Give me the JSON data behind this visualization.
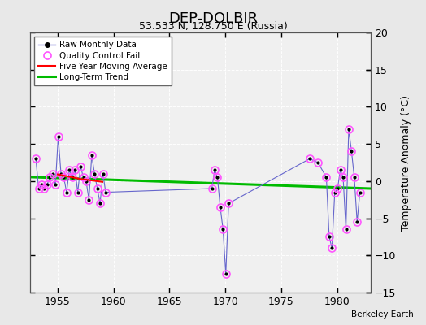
{
  "title": "DEP-DOLBIR",
  "subtitle": "53.533 N, 128.750 E (Russia)",
  "ylabel": "Temperature Anomaly (°C)",
  "credit": "Berkeley Earth",
  "xlim": [
    1952.5,
    1983.0
  ],
  "ylim": [
    -15,
    20
  ],
  "yticks": [
    -15,
    -10,
    -5,
    0,
    5,
    10,
    15,
    20
  ],
  "xticks": [
    1955,
    1960,
    1965,
    1970,
    1975,
    1980
  ],
  "fig_bg_color": "#e8e8e8",
  "plot_bg_color": "#f0f0f0",
  "raw_data_x": [
    1953.04,
    1953.29,
    1953.54,
    1953.79,
    1954.04,
    1954.29,
    1954.54,
    1954.79,
    1955.04,
    1955.29,
    1955.54,
    1955.79,
    1956.04,
    1956.29,
    1956.54,
    1956.79,
    1957.04,
    1957.29,
    1957.54,
    1957.79,
    1958.04,
    1958.29,
    1958.54,
    1958.79,
    1959.04,
    1959.29,
    1968.79,
    1969.04,
    1969.29,
    1969.54,
    1969.79,
    1970.04,
    1970.29,
    1977.54,
    1978.29,
    1979.04,
    1979.29,
    1979.54,
    1979.79,
    1980.04,
    1980.29,
    1980.54,
    1980.79,
    1981.04,
    1981.29,
    1981.54,
    1981.79,
    1982.04
  ],
  "raw_data_y": [
    3.0,
    -1.0,
    -0.5,
    -1.0,
    -0.5,
    0.5,
    1.0,
    -0.5,
    6.0,
    1.0,
    0.5,
    -1.5,
    1.5,
    0.5,
    1.5,
    -1.5,
    2.0,
    0.5,
    0.0,
    -2.5,
    3.5,
    1.0,
    -1.0,
    -3.0,
    1.0,
    -1.5,
    -1.0,
    1.5,
    0.5,
    -3.5,
    -6.5,
    -12.5,
    -3.0,
    3.0,
    2.5,
    0.5,
    -7.5,
    -9.0,
    -1.5,
    -1.0,
    1.5,
    0.5,
    -6.5,
    7.0,
    4.0,
    0.5,
    -5.5,
    -1.5
  ],
  "qc_fail_indices": [
    0,
    1,
    2,
    3,
    4,
    5,
    6,
    7,
    8,
    9,
    10,
    11,
    12,
    13,
    14,
    15,
    16,
    17,
    18,
    19,
    20,
    21,
    22,
    23,
    24,
    25,
    26,
    27,
    28,
    29,
    30,
    31,
    32,
    33,
    34,
    35,
    36,
    37,
    38,
    39,
    40,
    41,
    42,
    43,
    44,
    45,
    46,
    47
  ],
  "moving_avg_x": [
    1955.0,
    1956.0,
    1957.0,
    1958.0,
    1959.0
  ],
  "moving_avg_y": [
    0.9,
    0.6,
    0.3,
    0.1,
    -0.1
  ],
  "trend_x": [
    1952.5,
    1983.0
  ],
  "trend_y": [
    0.55,
    -1.0
  ],
  "raw_line_color": "#6666cc",
  "raw_dot_color": "#000000",
  "qc_color": "#ff55ff",
  "moving_avg_color": "#ff0000",
  "trend_color": "#00bb00"
}
